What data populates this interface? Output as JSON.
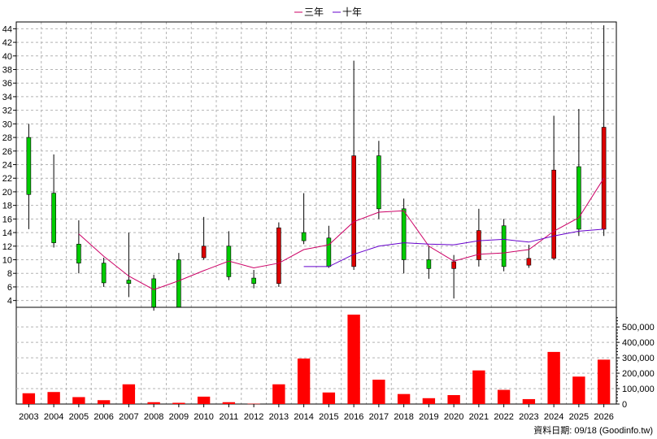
{
  "legend": {
    "items": [
      {
        "label": "三年",
        "color": "#cc0066"
      },
      {
        "label": "十年",
        "color": "#6600cc"
      }
    ]
  },
  "footnote": "資料日期: 09/18  (Goodinfo.tw)",
  "colors": {
    "up": "#dd0000",
    "down": "#00cc00",
    "volume": "#ff0000",
    "grid": "#b4b4b4"
  },
  "chart_data": [
    {
      "type": "candlestick",
      "title": "",
      "categories": [
        "2003",
        "2004",
        "2005",
        "2006",
        "2007",
        "2008",
        "2009",
        "2010",
        "2011",
        "2012",
        "2013",
        "2014",
        "2015",
        "2016",
        "2017",
        "2018",
        "2019",
        "2020",
        "2021",
        "2022",
        "2023",
        "2024",
        "2025",
        "2026"
      ],
      "ylim": [
        3,
        45
      ],
      "yticks": [
        4,
        6,
        8,
        10,
        12,
        14,
        16,
        18,
        20,
        22,
        24,
        26,
        28,
        30,
        32,
        34,
        36,
        38,
        40,
        42,
        44
      ],
      "grid": true,
      "legend_position": "top-center",
      "ohlc": [
        {
          "o": 19.6,
          "h": 30.0,
          "l": 14.5,
          "c": 28.0
        },
        {
          "o": 12.5,
          "h": 25.5,
          "l": 11.8,
          "c": 19.8
        },
        {
          "o": 9.5,
          "h": 15.8,
          "l": 8.0,
          "c": 12.3
        },
        {
          "o": 6.6,
          "h": 10.3,
          "l": 6.0,
          "c": 9.5
        },
        {
          "o": 6.5,
          "h": 14.0,
          "l": 4.5,
          "c": 7.0
        },
        {
          "o": 3.0,
          "h": 7.8,
          "l": 2.5,
          "c": 7.2
        },
        {
          "o": 3.0,
          "h": 11.0,
          "l": 3.0,
          "c": 10.0
        },
        {
          "o": 12.0,
          "h": 16.3,
          "l": 10.0,
          "c": 10.3
        },
        {
          "o": 7.5,
          "h": 14.2,
          "l": 7.0,
          "c": 12.0
        },
        {
          "o": 6.5,
          "h": 8.5,
          "l": 5.8,
          "c": 7.3
        },
        {
          "o": 14.7,
          "h": 15.5,
          "l": 6.0,
          "c": 6.5
        },
        {
          "o": 12.8,
          "h": 19.8,
          "l": 12.3,
          "c": 14.0
        },
        {
          "o": 9.0,
          "h": 15.0,
          "l": 8.8,
          "c": 13.2
        },
        {
          "o": 25.3,
          "h": 39.3,
          "l": 8.5,
          "c": 9.0
        },
        {
          "o": 17.5,
          "h": 27.5,
          "l": 16.0,
          "c": 25.3
        },
        {
          "o": 10.0,
          "h": 19.0,
          "l": 8.0,
          "c": 17.5
        },
        {
          "o": 8.7,
          "h": 12.0,
          "l": 7.2,
          "c": 10.0
        },
        {
          "o": 9.7,
          "h": 10.7,
          "l": 4.3,
          "c": 8.7
        },
        {
          "o": 14.3,
          "h": 17.5,
          "l": 9.0,
          "c": 10.0
        },
        {
          "o": 9.0,
          "h": 16.0,
          "l": 8.3,
          "c": 15.0
        },
        {
          "o": 10.2,
          "h": 12.2,
          "l": 8.8,
          "c": 9.2
        },
        {
          "o": 23.2,
          "h": 31.2,
          "l": 10.0,
          "c": 10.2
        },
        {
          "o": 14.5,
          "h": 32.2,
          "l": 13.5,
          "c": 23.7
        },
        {
          "o": 29.5,
          "h": 44.5,
          "l": 13.5,
          "c": 14.5
        }
      ],
      "series": [
        {
          "name": "三年",
          "values": [
            null,
            null,
            13.8,
            10.5,
            7.6,
            5.6,
            6.9,
            8.4,
            9.8,
            8.8,
            9.5,
            11.5,
            12.2,
            15.6,
            17.0,
            17.2,
            12.0,
            9.8,
            10.8,
            11.0,
            11.5,
            14.2,
            16.2,
            22.0
          ]
        },
        {
          "name": "十年",
          "values": [
            null,
            null,
            null,
            null,
            null,
            null,
            null,
            null,
            null,
            null,
            null,
            9.0,
            9.0,
            10.8,
            12.0,
            12.5,
            12.3,
            12.2,
            12.8,
            13.0,
            12.6,
            13.5,
            14.2,
            14.5
          ]
        }
      ]
    },
    {
      "type": "bar",
      "title": "",
      "categories": [
        "2003",
        "2004",
        "2005",
        "2006",
        "2007",
        "2008",
        "2009",
        "2010",
        "2011",
        "2012",
        "2013",
        "2014",
        "2015",
        "2016",
        "2017",
        "2018",
        "2019",
        "2020",
        "2021",
        "2022",
        "2023",
        "2024",
        "2025",
        "2026"
      ],
      "ylim": [
        0,
        580000
      ],
      "yticks": [
        {
          "value": 0,
          "label": "0"
        },
        {
          "value": 100000,
          "label": "100,000"
        },
        {
          "value": 200000,
          "label": "200,000"
        },
        {
          "value": 300000,
          "label": "300,000"
        },
        {
          "value": 400000,
          "label": "400,000"
        },
        {
          "value": 500000,
          "label": "500,000"
        }
      ],
      "values": [
        70000,
        78000,
        45000,
        25000,
        128000,
        12000,
        8000,
        48000,
        12000,
        2000,
        128000,
        295000,
        75000,
        580000,
        158000,
        65000,
        38000,
        58000,
        218000,
        92000,
        32000,
        338000,
        178000,
        288000
      ]
    }
  ]
}
